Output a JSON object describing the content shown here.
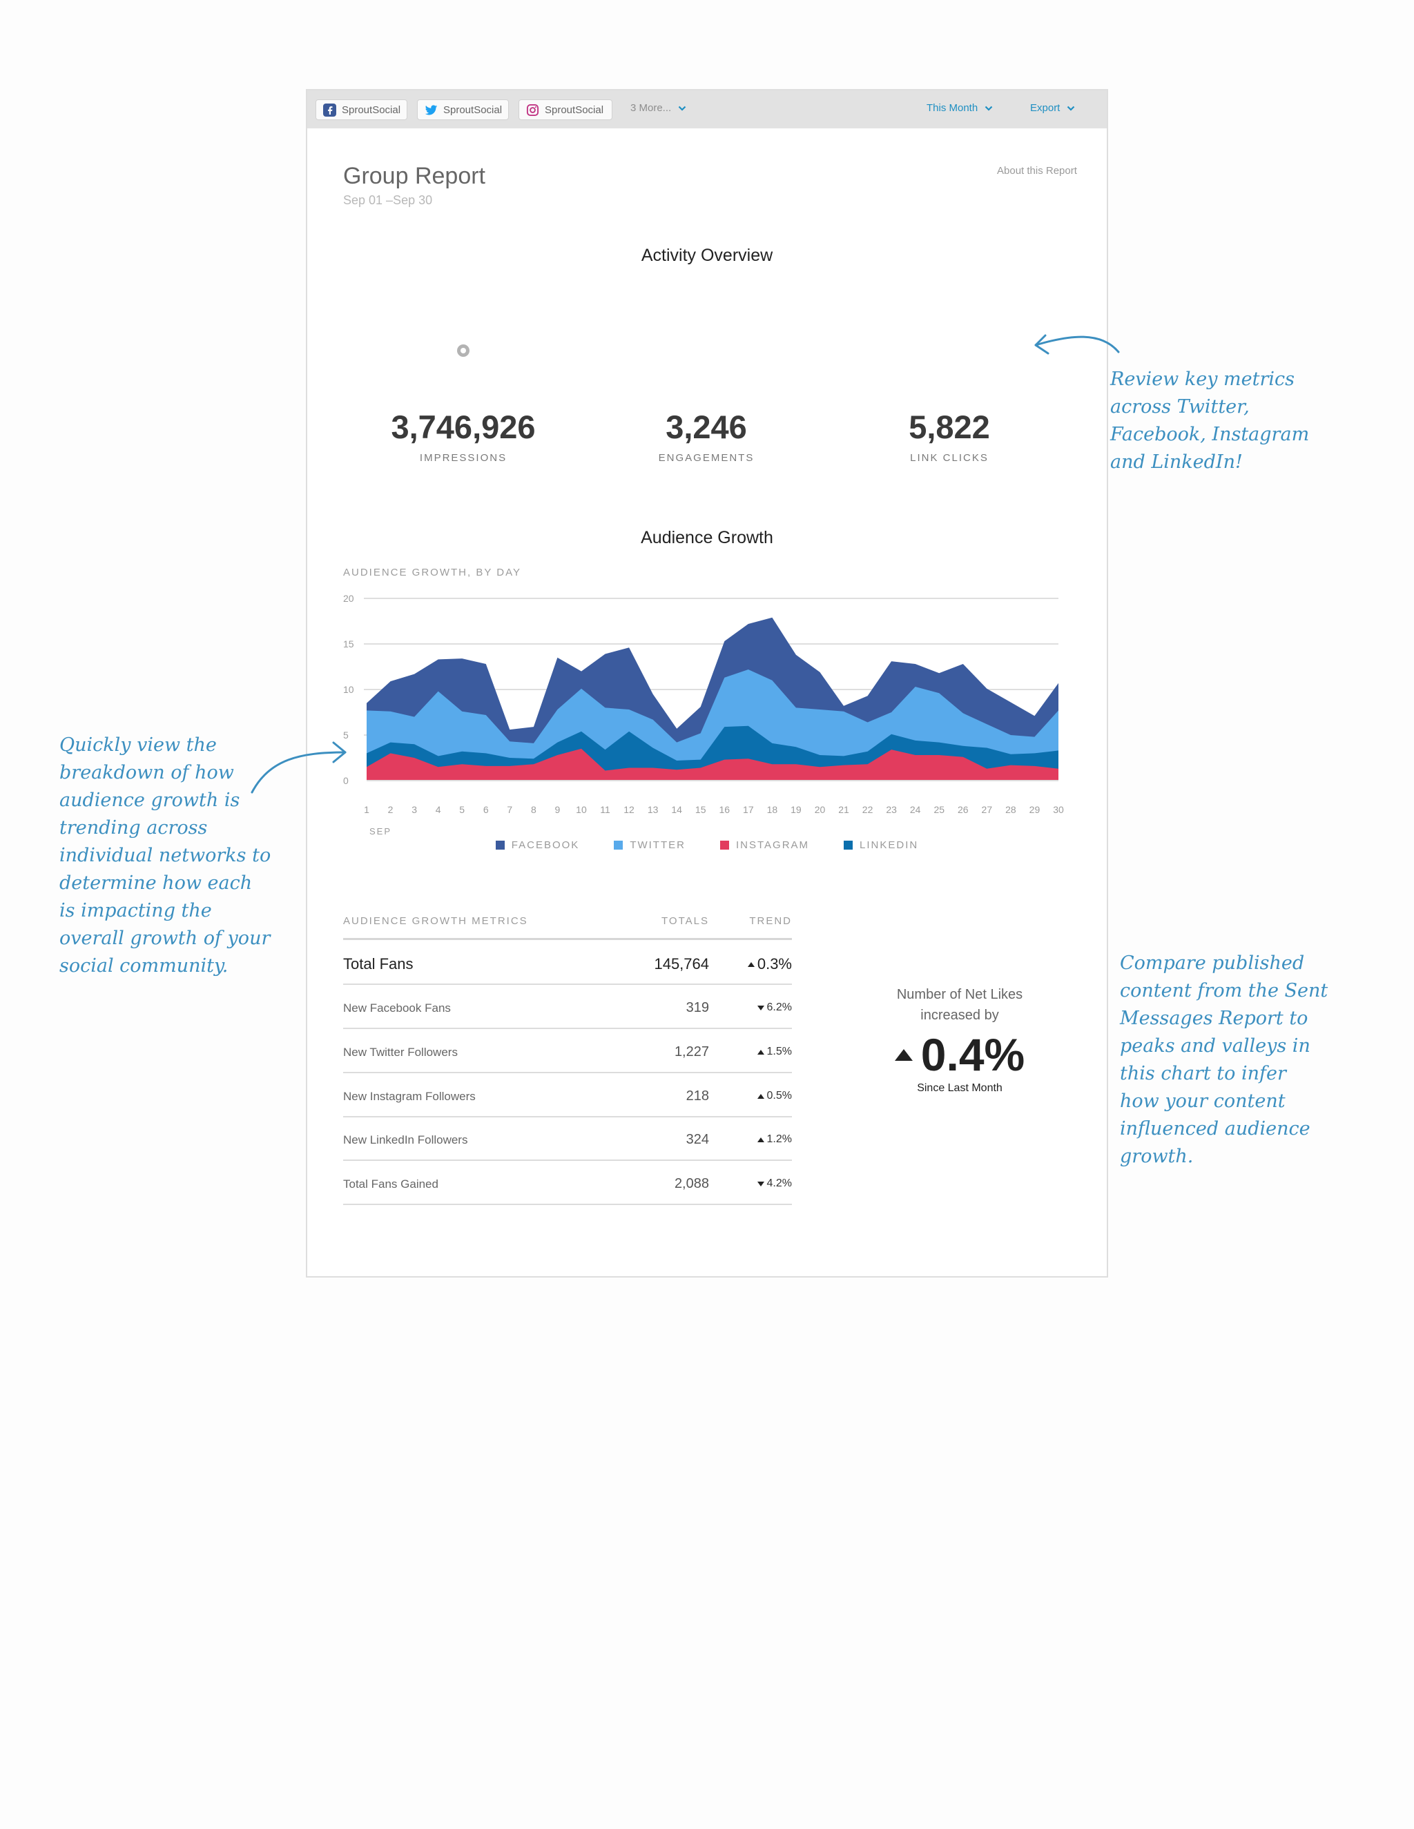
{
  "toolbar": {
    "profiles": [
      {
        "network": "facebook",
        "name": "SproutSocial",
        "icon": "facebook-icon"
      },
      {
        "network": "twitter",
        "name": "SproutSocial",
        "icon": "twitter-icon"
      },
      {
        "network": "instagram",
        "name": "SproutSocial",
        "icon": "instagram-icon"
      }
    ],
    "more_label": "3 More...",
    "date_range_label": "This Month",
    "export_label": "Export"
  },
  "report": {
    "title": "Group Report",
    "date_range": "Sep 01 –Sep 30",
    "about_link": "About this Report"
  },
  "activity_overview": {
    "heading": "Activity Overview",
    "metrics": [
      {
        "value": "3,746,926",
        "label": "IMPRESSIONS",
        "icon": "eye-icon",
        "color": "#b3b3b3"
      },
      {
        "value": "3,246",
        "label": "ENGAGEMENTS",
        "icon": "chat-bubbles-icon",
        "color": "#13899c"
      },
      {
        "value": "5,822",
        "label": "LINK CLICKS",
        "icon": "cursor-icon",
        "color": "#474747"
      }
    ]
  },
  "audience_growth": {
    "heading": "Audience Growth",
    "chart_label": "AUDIENCE GROWTH, BY DAY",
    "month_label": "SEP"
  },
  "chart_data": {
    "type": "area",
    "stacked": true,
    "title": "",
    "xlabel": "SEP",
    "ylabel": "",
    "x": [
      1,
      2,
      3,
      4,
      5,
      6,
      7,
      8,
      9,
      10,
      11,
      12,
      13,
      14,
      15,
      16,
      17,
      18,
      19,
      20,
      21,
      22,
      23,
      24,
      25,
      26,
      27,
      28,
      29,
      30
    ],
    "ylim": [
      0,
      20
    ],
    "yticks": [
      0,
      5,
      10,
      15,
      20
    ],
    "grid": true,
    "legend_position": "bottom",
    "series": [
      {
        "name": "INSTAGRAM",
        "color": "#e23c5e",
        "values": [
          1.5,
          3.0,
          2.5,
          1.5,
          1.8,
          1.6,
          1.6,
          1.8,
          2.8,
          3.5,
          1.1,
          1.4,
          1.4,
          1.2,
          1.4,
          2.3,
          2.4,
          1.8,
          1.8,
          1.5,
          1.7,
          1.8,
          3.4,
          2.8,
          2.8,
          2.6,
          1.3,
          1.7,
          1.6,
          1.3
        ]
      },
      {
        "name": "LINKEDIN",
        "color": "#0b6fad",
        "values": [
          1.5,
          1.2,
          1.5,
          1.2,
          1.4,
          1.4,
          0.9,
          0.6,
          1.4,
          1.9,
          2.3,
          4.0,
          2.2,
          1.0,
          0.9,
          3.6,
          3.6,
          2.3,
          1.9,
          1.3,
          1.0,
          1.4,
          1.7,
          1.6,
          1.4,
          1.2,
          2.3,
          1.2,
          1.4,
          2.0
        ]
      },
      {
        "name": "TWITTER",
        "color": "#58aaeb",
        "values": [
          4.7,
          3.4,
          3.0,
          7.1,
          4.4,
          4.2,
          1.8,
          1.7,
          3.6,
          4.7,
          4.6,
          2.4,
          3.1,
          2.0,
          2.9,
          5.4,
          6.2,
          6.9,
          4.3,
          5.0,
          4.9,
          3.2,
          2.4,
          5.9,
          5.4,
          3.6,
          2.6,
          2.1,
          1.8,
          4.4
        ]
      },
      {
        "name": "FACEBOOK",
        "color": "#3b5b9e",
        "values": [
          0.8,
          3.3,
          4.7,
          3.5,
          5.8,
          5.6,
          1.3,
          1.8,
          5.7,
          1.9,
          5.9,
          6.8,
          2.8,
          1.5,
          2.9,
          4.0,
          5.0,
          6.9,
          5.8,
          4.1,
          0.6,
          2.9,
          5.6,
          2.5,
          2.2,
          5.4,
          3.9,
          3.6,
          2.3,
          3.0
        ]
      }
    ],
    "legend_order": [
      "FACEBOOK",
      "TWITTER",
      "INSTAGRAM",
      "LINKEDIN"
    ]
  },
  "metrics_table": {
    "headers": {
      "name": "AUDIENCE GROWTH METRICS",
      "totals": "TOTALS",
      "trend": "TREND"
    },
    "rows": [
      {
        "name": "Total Fans",
        "total": "145,764",
        "trend": "0.3%",
        "direction": "up"
      },
      {
        "name": "New Facebook Fans",
        "total": "319",
        "trend": "6.2%",
        "direction": "down"
      },
      {
        "name": "New Twitter Followers",
        "total": "1,227",
        "trend": "1.5%",
        "direction": "up"
      },
      {
        "name": "New Instagram Followers",
        "total": "218",
        "trend": "0.5%",
        "direction": "up"
      },
      {
        "name": "New LinkedIn Followers",
        "total": "324",
        "trend": "1.2%",
        "direction": "up"
      },
      {
        "name": "Total Fans Gained",
        "total": "2,088",
        "trend": "4.2%",
        "direction": "down"
      }
    ]
  },
  "net_likes": {
    "label": "Number of Net Likes increased by",
    "value": "0.4%",
    "since": "Since Last Month"
  },
  "annotations": {
    "metrics_note": "Review key metrics across Twitter, Facebook, Instagram and LinkedIn!",
    "growth_note": "Quickly view the breakdown of how audience growth is trending across individual networks to determine how each is impacting the overall growth of your social community.",
    "content_note": "Compare published content from the Sent Messages Report to peaks and valleys in this chart to infer how your content influenced audience growth."
  }
}
